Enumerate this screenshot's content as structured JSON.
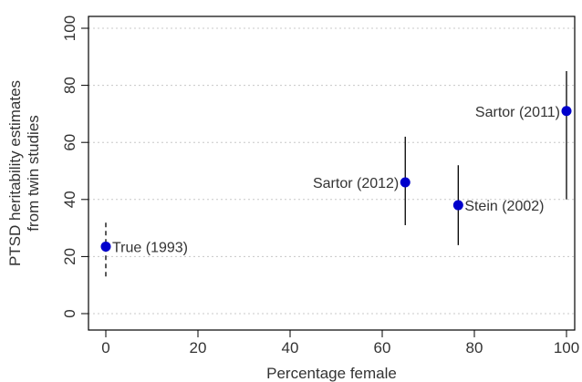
{
  "chart_data": {
    "type": "scatter",
    "title": "",
    "xlabel": "Percentage female",
    "ylabel_lines": [
      "PTSD heritability estimates",
      "from twin studies"
    ],
    "xlim": [
      0,
      100
    ],
    "ylim": [
      0,
      100
    ],
    "xticks": [
      0,
      20,
      40,
      60,
      80,
      100
    ],
    "yticks": [
      0,
      20,
      40,
      60,
      80,
      100
    ],
    "grid": "horizontal dotted",
    "point_color": "#0000cc",
    "points": [
      {
        "label": "True (1993)",
        "x": 0,
        "y": 23.5,
        "ci": [
          13,
          33
        ],
        "ci_style": "dashed",
        "label_side": "right"
      },
      {
        "label": "Sartor (2012)",
        "x": 65,
        "y": 46,
        "ci": [
          31,
          62
        ],
        "ci_style": "solid",
        "label_side": "left"
      },
      {
        "label": "Stein (2002)",
        "x": 76.5,
        "y": 38,
        "ci": [
          24,
          52
        ],
        "ci_style": "solid",
        "label_side": "right"
      },
      {
        "label": "Sartor (2011)",
        "x": 100,
        "y": 71,
        "ci": [
          40,
          85
        ],
        "ci_style": "solid",
        "label_side": "left"
      }
    ]
  }
}
